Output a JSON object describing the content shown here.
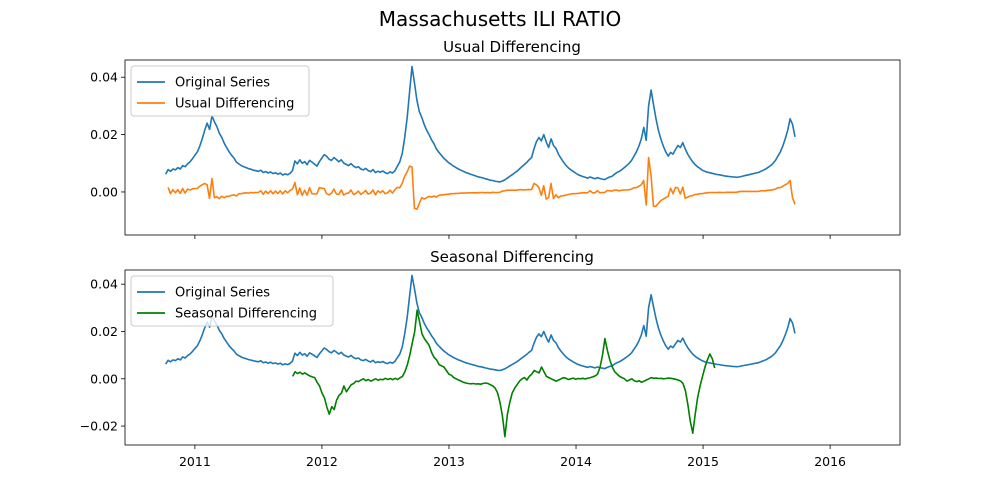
{
  "figure": {
    "suptitle": "Massachusetts ILI RATIO"
  },
  "chart_data": [
    {
      "type": "line",
      "title": "Usual Differencing",
      "ylim": [
        -0.015,
        0.046
      ],
      "xlim": [
        2010.45,
        2016.55
      ],
      "yticks": [
        0.0,
        0.02,
        0.04
      ],
      "ytick_labels": [
        "0.00",
        "0.02",
        "0.04"
      ],
      "xticks": [
        2011,
        2012,
        2013,
        2014,
        2015,
        2016
      ],
      "xtick_labels": [
        "",
        "",
        "",
        "",
        "",
        ""
      ],
      "legend": {
        "position": "top-left",
        "entries": [
          "Original Series",
          "Usual Differencing"
        ]
      },
      "series": [
        {
          "name": "Original Series",
          "color": "#1f77b4",
          "x_start": 2010.77,
          "x_step": 0.0192,
          "values": [
            0.0062,
            0.0078,
            0.0072,
            0.008,
            0.0077,
            0.0085,
            0.008,
            0.0092,
            0.0088,
            0.0098,
            0.0105,
            0.0116,
            0.0128,
            0.014,
            0.016,
            0.0185,
            0.0215,
            0.024,
            0.0218,
            0.0265,
            0.0245,
            0.0228,
            0.0205,
            0.019,
            0.017,
            0.0155,
            0.014,
            0.0128,
            0.0118,
            0.0104,
            0.0098,
            0.0092,
            0.0088,
            0.0085,
            0.0081,
            0.0079,
            0.0076,
            0.0074,
            0.0072,
            0.0076,
            0.0068,
            0.0071,
            0.0066,
            0.007,
            0.0064,
            0.0067,
            0.0062,
            0.0066,
            0.0059,
            0.0063,
            0.006,
            0.0065,
            0.0075,
            0.0108,
            0.0098,
            0.0112,
            0.01,
            0.0106,
            0.0095,
            0.011,
            0.0104,
            0.0097,
            0.009,
            0.0105,
            0.0118,
            0.013,
            0.0124,
            0.0114,
            0.011,
            0.012,
            0.0113,
            0.0105,
            0.0112,
            0.0101,
            0.0096,
            0.0092,
            0.0099,
            0.009,
            0.0085,
            0.0088,
            0.008,
            0.0077,
            0.0082,
            0.0075,
            0.0071,
            0.0078,
            0.0068,
            0.0072,
            0.0069,
            0.0073,
            0.0067,
            0.0064,
            0.007,
            0.0066,
            0.0074,
            0.009,
            0.0105,
            0.0135,
            0.019,
            0.026,
            0.035,
            0.0437,
            0.038,
            0.032,
            0.028,
            0.026,
            0.0235,
            0.0215,
            0.02,
            0.0182,
            0.0168,
            0.015,
            0.0138,
            0.0128,
            0.0118,
            0.011,
            0.0102,
            0.0096,
            0.009,
            0.0085,
            0.008,
            0.0076,
            0.0072,
            0.0068,
            0.0065,
            0.0062,
            0.0059,
            0.0056,
            0.0053,
            0.0051,
            0.0049,
            0.0046,
            0.0044,
            0.0041,
            0.004,
            0.0038,
            0.0036,
            0.0035,
            0.0038,
            0.0042,
            0.0048,
            0.0054,
            0.006,
            0.0066,
            0.0072,
            0.008,
            0.0088,
            0.0095,
            0.0103,
            0.0112,
            0.012,
            0.015,
            0.0175,
            0.019,
            0.0178,
            0.02,
            0.0175,
            0.0155,
            0.0185,
            0.0162,
            0.0152,
            0.0132,
            0.0118,
            0.0105,
            0.0094,
            0.0085,
            0.0078,
            0.0072,
            0.0066,
            0.0061,
            0.0057,
            0.0054,
            0.0051,
            0.0048,
            0.0052,
            0.0049,
            0.0046,
            0.005,
            0.0047,
            0.0045,
            0.0043,
            0.0048,
            0.0052,
            0.0055,
            0.0062,
            0.0068,
            0.0072,
            0.0078,
            0.0085,
            0.0092,
            0.01,
            0.011,
            0.0125,
            0.014,
            0.016,
            0.0185,
            0.0225,
            0.018,
            0.03,
            0.0355,
            0.0305,
            0.0255,
            0.0215,
            0.0185,
            0.016,
            0.014,
            0.0125,
            0.0138,
            0.0132,
            0.0148,
            0.0162,
            0.0155,
            0.0172,
            0.015,
            0.0132,
            0.0118,
            0.0105,
            0.0096,
            0.0088,
            0.0082,
            0.0076,
            0.0072,
            0.0069,
            0.0067,
            0.0065,
            0.0063,
            0.0061,
            0.006,
            0.0058,
            0.0056,
            0.0055,
            0.0054,
            0.0053,
            0.0052,
            0.0051,
            0.0052,
            0.0054,
            0.0056,
            0.0058,
            0.006,
            0.0062,
            0.0064,
            0.0066,
            0.0068,
            0.0072,
            0.0076,
            0.008,
            0.0086,
            0.0092,
            0.01,
            0.011,
            0.0125,
            0.014,
            0.016,
            0.0185,
            0.0215,
            0.0255,
            0.0235,
            0.0192
          ]
        },
        {
          "name": "Usual Differencing",
          "color": "#ff7f0e",
          "x_start": 2010.789,
          "x_step": 0.0192,
          "values": [
            0.0016,
            -0.0006,
            0.0008,
            -0.0003,
            0.0008,
            -0.0005,
            0.0012,
            -0.0004,
            0.001,
            0.0007,
            0.0011,
            0.0012,
            0.0012,
            0.002,
            0.0025,
            0.003,
            0.0025,
            -0.0022,
            0.0047,
            -0.002,
            -0.0017,
            -0.0023,
            -0.0015,
            -0.002,
            -0.0015,
            -0.0015,
            -0.0012,
            -0.001,
            -0.0014,
            -0.0006,
            -0.0006,
            -0.0004,
            -0.0003,
            -0.0004,
            -0.0002,
            -0.0003,
            -0.0002,
            -0.0002,
            0.0004,
            -0.0008,
            0.0003,
            -0.0005,
            0.0004,
            -0.0006,
            0.0003,
            -0.0005,
            0.0004,
            -0.0007,
            0.0004,
            -0.0003,
            0.0005,
            0.001,
            0.0033,
            -0.001,
            0.0014,
            -0.0012,
            0.0006,
            -0.0011,
            0.0015,
            -0.0006,
            -0.0007,
            -0.0007,
            0.0015,
            0.0013,
            0.0012,
            -0.0006,
            -0.001,
            -0.0004,
            0.001,
            -0.0007,
            -0.0008,
            0.0007,
            -0.0011,
            -0.0005,
            -0.0004,
            0.0007,
            -0.0009,
            -0.0005,
            0.0003,
            -0.0008,
            -0.0003,
            0.0005,
            -0.0007,
            -0.0004,
            0.0007,
            -0.001,
            0.0004,
            -0.0003,
            0.0004,
            -0.0006,
            -0.0003,
            0.0006,
            -0.0004,
            0.0008,
            0.0016,
            0.0015,
            0.003,
            0.0055,
            0.007,
            0.009,
            0.0087,
            -0.0057,
            -0.006,
            -0.004,
            -0.002,
            -0.0025,
            -0.002,
            -0.0015,
            -0.0018,
            -0.0014,
            -0.0018,
            -0.0012,
            -0.001,
            -0.001,
            -0.0008,
            -0.0008,
            -0.0006,
            -0.0006,
            -0.0005,
            -0.0005,
            -0.0004,
            -0.0004,
            -0.0004,
            -0.0003,
            -0.0003,
            -0.0003,
            -0.0003,
            -0.0003,
            -0.0002,
            -0.0002,
            -0.0003,
            -0.0002,
            -0.0003,
            -0.0001,
            -0.0002,
            -0.0002,
            -0.0001,
            0.0003,
            0.0004,
            0.0006,
            0.0006,
            0.0006,
            0.0006,
            0.0006,
            0.0008,
            0.0008,
            0.0007,
            0.0008,
            0.0009,
            0.0008,
            0.003,
            0.0025,
            0.0015,
            -0.0012,
            0.0022,
            -0.0025,
            -0.002,
            0.003,
            -0.0023,
            -0.001,
            -0.002,
            -0.0014,
            -0.0013,
            -0.0011,
            -0.0009,
            -0.0007,
            -0.0006,
            -0.0006,
            -0.0005,
            -0.0004,
            -0.0003,
            -0.0003,
            -0.0003,
            0.0004,
            -0.0003,
            -0.0003,
            0.0004,
            -0.0003,
            -0.0002,
            -0.0002,
            0.0005,
            0.0004,
            0.0003,
            0.0007,
            0.0006,
            0.0004,
            0.0006,
            0.0007,
            0.0007,
            0.0008,
            0.001,
            0.0015,
            0.0015,
            0.002,
            0.0025,
            0.004,
            -0.0045,
            0.012,
            0.0055,
            -0.005,
            -0.005,
            -0.004,
            -0.003,
            -0.0025,
            -0.002,
            -0.0015,
            0.0013,
            -0.0006,
            0.0016,
            0.0014,
            -0.0007,
            0.0017,
            -0.0022,
            -0.0018,
            -0.0014,
            -0.0013,
            -0.0009,
            -0.0008,
            -0.0006,
            -0.0006,
            -0.0004,
            -0.0003,
            -0.0002,
            -0.0002,
            -0.0002,
            -0.0002,
            -0.0001,
            -0.0002,
            -0.0002,
            -0.0001,
            -0.0001,
            -0.0001,
            -0.0001,
            -0.0001,
            0.0001,
            0.0002,
            0.0002,
            0.0002,
            0.0002,
            0.0002,
            0.0002,
            0.0002,
            0.0002,
            0.0004,
            0.0004,
            0.0004,
            0.0006,
            0.0006,
            0.0008,
            0.001,
            0.0015,
            0.0015,
            0.002,
            0.0025,
            0.003,
            0.004,
            -0.002,
            -0.0043
          ]
        }
      ]
    },
    {
      "type": "line",
      "title": "Seasonal Differencing",
      "ylim": [
        -0.028,
        0.046
      ],
      "xlim": [
        2010.45,
        2016.55
      ],
      "yticks": [
        -0.02,
        0.0,
        0.02,
        0.04
      ],
      "ytick_labels": [
        "−0.02",
        "0.00",
        "0.02",
        "0.04"
      ],
      "xticks": [
        2011,
        2012,
        2013,
        2014,
        2015,
        2016
      ],
      "xtick_labels": [
        "2011",
        "2012",
        "2013",
        "2014",
        "2015",
        "2016"
      ],
      "legend": {
        "position": "top-left",
        "entries": [
          "Original Series",
          "Seasonal Differencing"
        ]
      },
      "series": [
        {
          "name": "Original Series",
          "color": "#1f77b4",
          "x_start": 2010.77,
          "x_step": 0.0192,
          "values_ref": 0
        },
        {
          "name": "Seasonal Differencing",
          "color": "#008000",
          "x_start": 2011.77,
          "x_step": 0.0192,
          "values": [
            0.001,
            0.003,
            0.0022,
            0.0028,
            0.002,
            0.0025,
            0.0018,
            0.0012,
            0.0008,
            0.0005,
            -0.0015,
            -0.003,
            -0.006,
            -0.008,
            -0.012,
            -0.015,
            -0.0118,
            -0.013,
            -0.009,
            -0.007,
            -0.006,
            -0.003,
            -0.0055,
            -0.004,
            -0.0025,
            -0.002,
            -0.001,
            -0.0012,
            -0.0005,
            0.0,
            -0.0008,
            -0.0003,
            -0.001,
            -0.0005,
            0.0,
            -0.0006,
            -0.0002,
            -0.0004,
            0.0002,
            -0.0003,
            0.0001,
            -0.0004,
            0.0002,
            -0.0003,
            0.0004,
            0.001,
            0.003,
            0.006,
            0.01,
            0.015,
            0.02,
            0.029,
            0.024,
            0.019,
            0.017,
            0.0155,
            0.014,
            0.011,
            0.009,
            0.008,
            0.006,
            0.0055,
            0.005,
            0.0035,
            0.002,
            0.0015,
            0.0005,
            0.0,
            -0.0005,
            -0.001,
            -0.0015,
            -0.0018,
            -0.002,
            -0.0021,
            -0.002,
            -0.0022,
            -0.0021,
            -0.0023,
            -0.002,
            -0.0018,
            -0.002,
            -0.0025,
            -0.003,
            -0.004,
            -0.006,
            -0.01,
            -0.016,
            -0.0245,
            -0.015,
            -0.01,
            -0.006,
            -0.004,
            -0.0025,
            -0.001,
            0.0,
            0.0005,
            -0.0005,
            0.001,
            0.002,
            0.0035,
            0.003,
            0.0025,
            0.005,
            0.003,
            0.001,
            0.0005,
            0.0,
            -0.0005,
            -0.001,
            -0.0005,
            0.0,
            0.0005,
            0.0002,
            -0.0003,
            0.0,
            0.0003,
            -0.0002,
            0.0001,
            0.0,
            0.0002,
            -0.0001,
            0.0003,
            0.0005,
            0.0008,
            0.0012,
            0.002,
            0.005,
            0.01,
            0.017,
            0.012,
            0.008,
            0.005,
            0.003,
            0.002,
            0.001,
            0.0005,
            0.0,
            -0.001,
            -0.0005,
            0.0,
            -0.0008,
            -0.0012,
            -0.0008,
            -0.0015,
            -0.001,
            -0.0005,
            0.0,
            0.0005,
            0.0002,
            0.0003,
            0.0001,
            0.0002,
            0.0,
            0.0001,
            0.0003,
            0.0002,
            0.0,
            -0.0002,
            -0.0005,
            -0.001,
            -0.002,
            -0.005,
            -0.011,
            -0.018,
            -0.023,
            -0.015,
            -0.008,
            -0.003,
            0.001,
            0.005,
            0.008,
            0.0105,
            0.0085,
            0.0045
          ]
        }
      ]
    }
  ]
}
